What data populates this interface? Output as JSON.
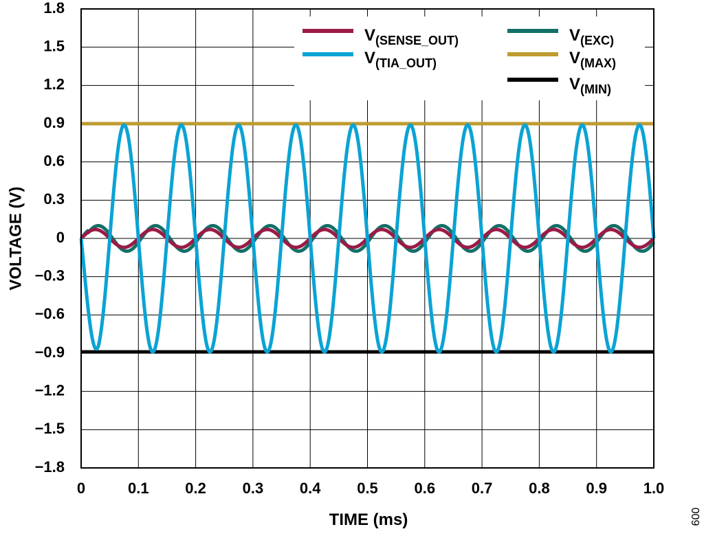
{
  "chart_data": {
    "type": "line",
    "xlabel": "TIME (ms)",
    "ylabel": "VOLTAGE (V)",
    "xlim": [
      0,
      1.0
    ],
    "ylim": [
      -1.8,
      1.8
    ],
    "x_ticks": [
      "0",
      "0.1",
      "0.2",
      "0.3",
      "0.4",
      "0.5",
      "0.6",
      "0.7",
      "0.8",
      "0.9",
      "1.0"
    ],
    "y_ticks": [
      "1.8",
      "1.5",
      "1.2",
      "0.9",
      "0.6",
      "0.3",
      "0",
      "−0.3",
      "−0.6",
      "−0.9",
      "−1.2",
      "−1.5",
      "−1.8"
    ],
    "grid": true,
    "legend_position": "top-right",
    "series": [
      {
        "name": "V(SENSE_OUT)",
        "color": "#9b1b46",
        "shape": "sine",
        "frequency_khz": 10,
        "amplitude": 0.07,
        "phase_deg": 0,
        "offset": 0
      },
      {
        "name": "V(EXC)",
        "color": "#137069",
        "shape": "sine",
        "frequency_khz": 10,
        "amplitude": 0.1,
        "phase_deg": 90,
        "offset": 0,
        "start_at_zero": true
      },
      {
        "name": "V(TIA_OUT)",
        "color": "#0ba3d4",
        "shape": "sine",
        "frequency_khz": 10,
        "amplitude": 0.89,
        "phase_deg": 180,
        "offset": 0,
        "start_at_zero": true,
        "first_trough": -0.75
      },
      {
        "name": "V(MAX)",
        "color": "#bf9b30",
        "shape": "constant",
        "value": 0.9
      },
      {
        "name": "V(MIN)",
        "color": "#000000",
        "shape": "constant",
        "value": -0.89
      }
    ]
  },
  "legend": [
    {
      "main": "V",
      "sub": "(SENSE_OUT)"
    },
    {
      "main": "V",
      "sub": "(TIA_OUT)"
    },
    {
      "main": "V",
      "sub": "(EXC)"
    },
    {
      "main": "V",
      "sub": "(MAX)"
    },
    {
      "main": "V",
      "sub": "(MIN)"
    }
  ],
  "figure_id": "009"
}
